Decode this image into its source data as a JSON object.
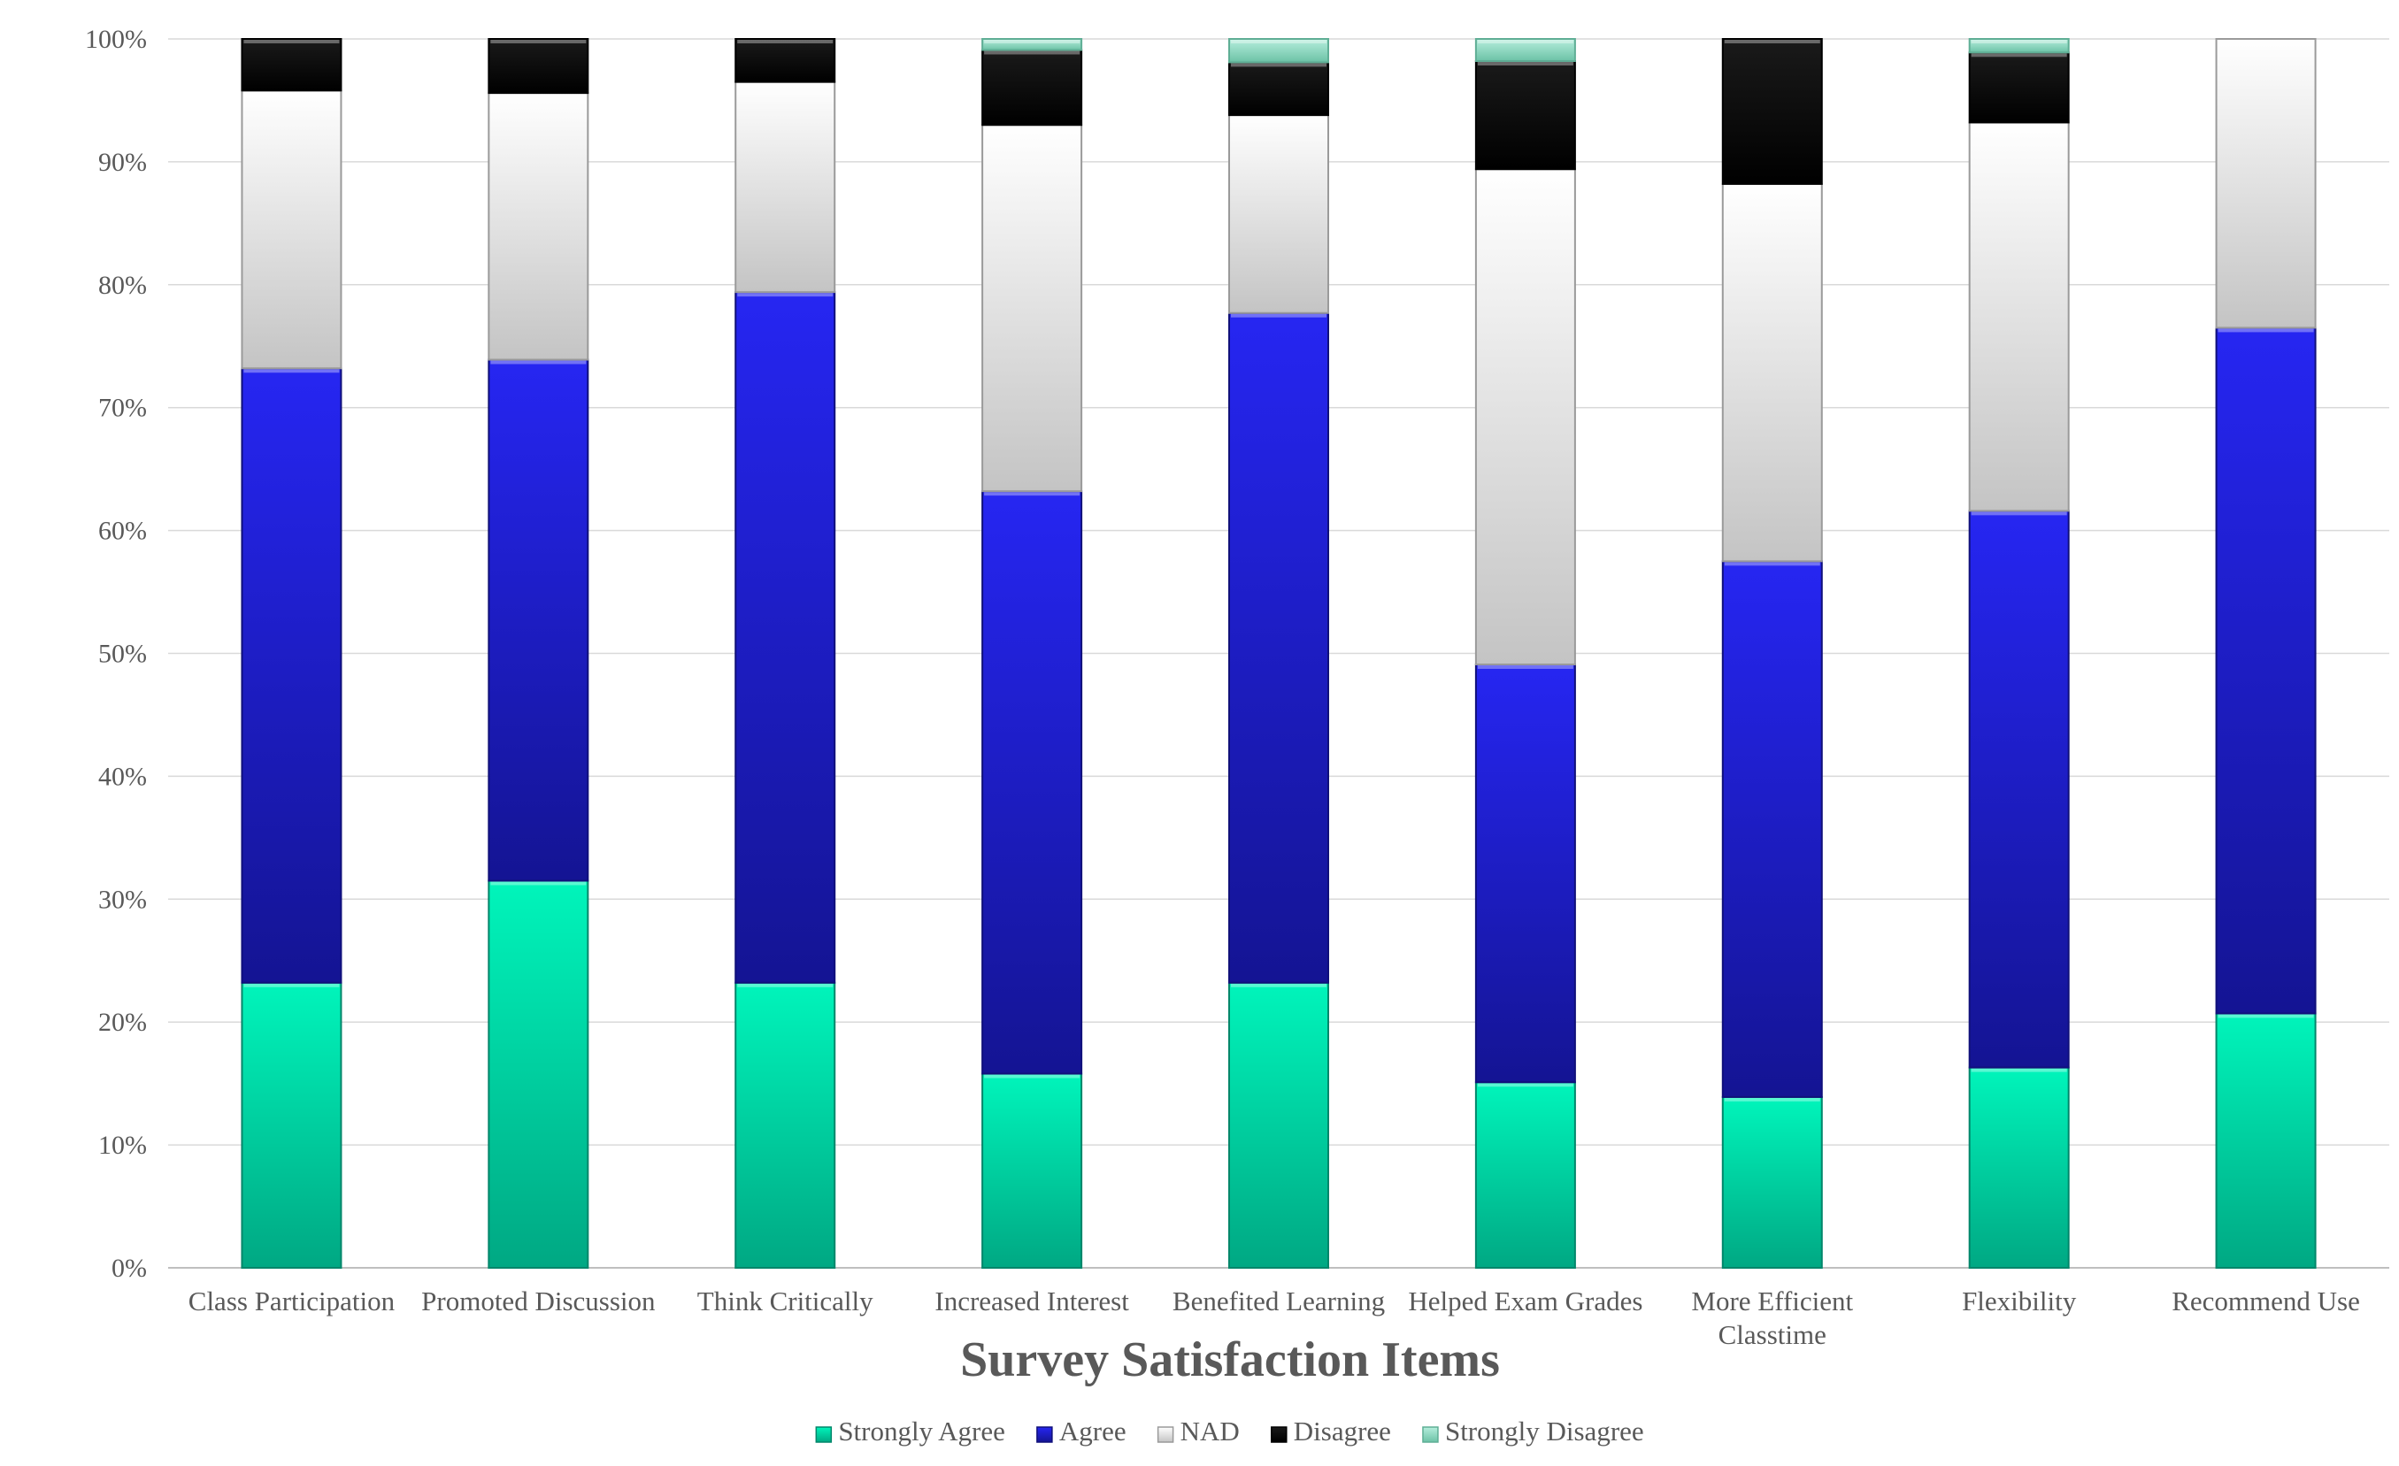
{
  "chart_data": {
    "type": "bar",
    "stacked": true,
    "percent_stacked": true,
    "title": "",
    "xlabel": "Survey Satisfaction Items",
    "ylabel": "",
    "ylim": [
      0,
      100
    ],
    "yticks": [
      "0%",
      "10%",
      "20%",
      "30%",
      "40%",
      "50%",
      "60%",
      "70%",
      "80%",
      "90%",
      "100%"
    ],
    "grid": true,
    "legend_position": "bottom",
    "categories": [
      [
        "Class Participation"
      ],
      [
        "Promoted Discussion"
      ],
      [
        "Think Critically"
      ],
      [
        "Increased Interest"
      ],
      [
        "Benefited Learning"
      ],
      [
        "Helped Exam Grades"
      ],
      [
        "More Efficient",
        "Classtime"
      ],
      [
        "Flexibility"
      ],
      [
        "Recommend Use"
      ]
    ],
    "series": [
      {
        "name": "Strongly Agree",
        "color": "#00c99a",
        "values": [
          23.2,
          31.5,
          23.2,
          15.8,
          23.2,
          15.1,
          13.9,
          16.3,
          20.7
        ]
      },
      {
        "name": "Agree",
        "color": "#1c1ed6",
        "values": [
          50.0,
          42.4,
          56.2,
          47.4,
          54.5,
          34.0,
          43.6,
          45.3,
          55.8
        ]
      },
      {
        "name": "NAD",
        "color": "#e8e8e8",
        "values": [
          22.6,
          21.7,
          17.1,
          29.8,
          16.1,
          40.3,
          30.7,
          31.6,
          23.5
        ]
      },
      {
        "name": "Disagree",
        "color": "#0a0a0a",
        "values": [
          4.2,
          4.4,
          3.5,
          6.1,
          4.3,
          8.8,
          11.8,
          5.7,
          0
        ]
      },
      {
        "name": "Strongly Disagree",
        "color": "#8fd6c0",
        "values": [
          0,
          0,
          0,
          0.9,
          1.9,
          1.8,
          0,
          1.1,
          0
        ]
      }
    ]
  }
}
